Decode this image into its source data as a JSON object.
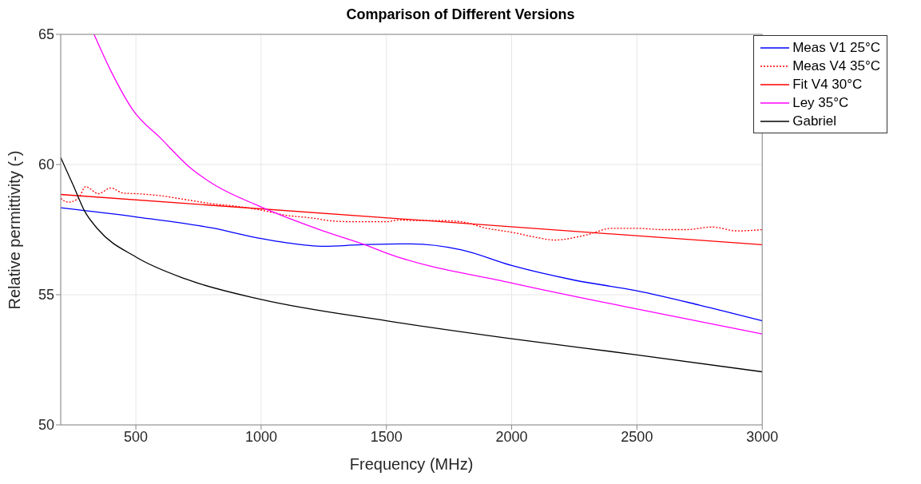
{
  "chart_data": {
    "type": "line",
    "title": "Comparison of Different Versions",
    "xlabel": "Frequency (MHz)",
    "ylabel": "Relative permittivity (-)",
    "xlim": [
      200,
      3000
    ],
    "xticks": [
      500,
      1000,
      1500,
      2000,
      2500,
      3000
    ],
    "ylim": [
      50,
      65
    ],
    "yticks": [
      50,
      55,
      60,
      65
    ],
    "grid": true,
    "legend": "top right",
    "marker": "none",
    "series": [
      {
        "name": "Meas V1 25°C",
        "color": "#0000ff",
        "line_style": "solid",
        "x": [
          200,
          500,
          800,
          1000,
          1100,
          1250,
          1400,
          1550,
          1600,
          1800,
          2000,
          2250,
          2500,
          2750,
          3000
        ],
        "values": [
          58.34,
          57.99,
          57.57,
          57.16,
          57.0,
          56.86,
          56.92,
          56.95,
          56.95,
          56.72,
          56.12,
          55.56,
          55.15,
          54.6,
          54.0
        ]
      },
      {
        "name": "Meas V4 35°C",
        "color": "#ff0000",
        "line_style": "dotted",
        "x": [
          200,
          230,
          270,
          300,
          350,
          400,
          450,
          500,
          600,
          700,
          800,
          900,
          1000,
          1100,
          1200,
          1300,
          1400,
          1500,
          1550,
          1600,
          1700,
          1800,
          1900,
          2000,
          2100,
          2170,
          2300,
          2400,
          2500,
          2600,
          2700,
          2800,
          2900,
          3000
        ],
        "values": [
          58.7,
          58.55,
          58.7,
          59.15,
          58.88,
          59.1,
          58.9,
          58.88,
          58.8,
          58.65,
          58.5,
          58.4,
          58.25,
          58.05,
          57.95,
          57.82,
          57.8,
          57.8,
          57.87,
          57.85,
          57.85,
          57.8,
          57.55,
          57.4,
          57.2,
          57.1,
          57.3,
          57.55,
          57.55,
          57.5,
          57.5,
          57.6,
          57.45,
          57.5
        ]
      },
      {
        "name": "Fit V4 30°C",
        "color": "#ff0000",
        "line_style": "solid",
        "x": [
          200,
          3000
        ],
        "values": [
          58.85,
          56.92
        ]
      },
      {
        "name": "Ley 35°C",
        "color": "#ff00ff",
        "line_style": "solid",
        "x": [
          333,
          400,
          492,
          600,
          713,
          800,
          1000,
          1245,
          1420,
          1500,
          2000,
          2500,
          3000
        ],
        "values": [
          65.0,
          63.6,
          62.04,
          61.0,
          59.91,
          59.3,
          58.37,
          57.46,
          56.9,
          56.6,
          55.45,
          54.45,
          53.49
        ]
      },
      {
        "name": "Gabriel",
        "color": "#000000",
        "line_style": "solid",
        "x": [
          200,
          250,
          296,
          350,
          500,
          700,
          1000,
          1500,
          2000,
          2500,
          3000
        ],
        "values": [
          60.27,
          59.2,
          58.2,
          57.5,
          56.45,
          55.6,
          54.82,
          54.0,
          53.31,
          52.69,
          52.04
        ]
      }
    ]
  }
}
